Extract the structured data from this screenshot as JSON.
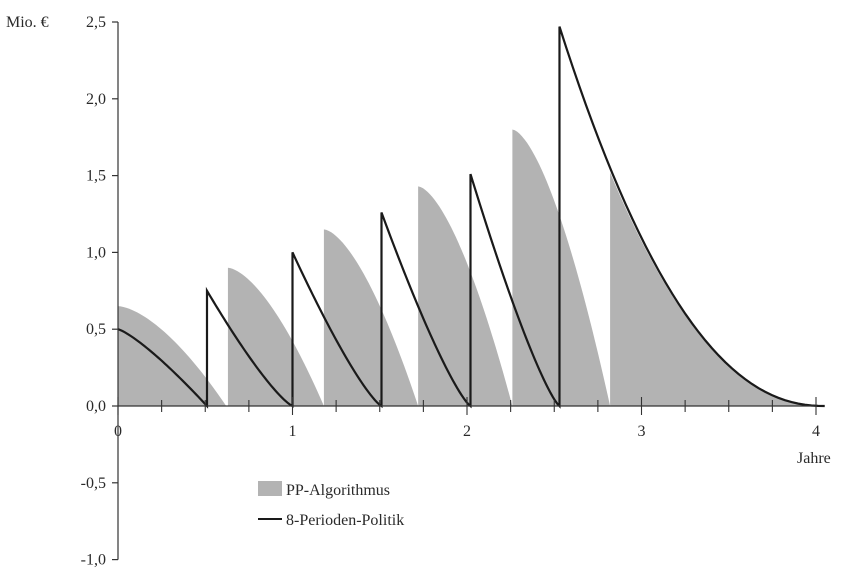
{
  "chart_data": {
    "type": "area",
    "ylabel": "Mio. €",
    "xlabel": "Jahre",
    "xlim": [
      0,
      4.05
    ],
    "ylim": [
      -1.0,
      2.5
    ],
    "x_ticks": [
      0,
      1,
      2,
      3,
      4
    ],
    "x_tick_labels": [
      "0",
      "1",
      "2",
      "3",
      "4"
    ],
    "x_minor_step": 0.25,
    "y_ticks": [
      2.5,
      2.0,
      1.5,
      1.0,
      0.5,
      0.0,
      -0.5,
      -1.0
    ],
    "y_tick_labels": [
      "2,5",
      "2,0",
      "1,5",
      "1,0",
      "0,5",
      "0,0",
      "-0,5",
      "-1,0"
    ],
    "grid": false,
    "legend_position": "bottom-left",
    "series": [
      {
        "name": "PP-Algorithmus",
        "kind": "filled-area",
        "color": "#b3b3b3",
        "segments": [
          {
            "x_start": 0.0,
            "x_end": 0.62,
            "peak": 0.65,
            "curve": "concave"
          },
          {
            "x_start": 0.63,
            "x_end": 1.18,
            "peak": 0.9,
            "curve": "concave"
          },
          {
            "x_start": 1.18,
            "x_end": 1.72,
            "peak": 1.15,
            "curve": "concave"
          },
          {
            "x_start": 1.72,
            "x_end": 2.26,
            "peak": 1.43,
            "curve": "concave"
          },
          {
            "x_start": 2.26,
            "x_end": 2.82,
            "peak": 1.8,
            "curve": "concave"
          },
          {
            "x_start": 2.82,
            "x_end": 4.05,
            "peak": 1.52,
            "curve": "convex"
          }
        ]
      },
      {
        "name": "8-Perioden-Politik",
        "kind": "line",
        "color": "#1a1a1a",
        "segments": [
          {
            "x_start": 0.0,
            "x_end": 0.51,
            "peak": 0.5,
            "curve": "slightly-concave"
          },
          {
            "x_start": 0.51,
            "x_end": 1.0,
            "peak": 0.75,
            "curve": "slightly-convex"
          },
          {
            "x_start": 1.0,
            "x_end": 1.51,
            "peak": 1.0,
            "curve": "slightly-convex"
          },
          {
            "x_start": 1.51,
            "x_end": 2.02,
            "peak": 1.26,
            "curve": "slightly-convex"
          },
          {
            "x_start": 2.02,
            "x_end": 2.53,
            "peak": 1.51,
            "curve": "slightly-convex"
          },
          {
            "x_start": 2.53,
            "x_end": 4.05,
            "peak": 2.47,
            "curve": "convex"
          }
        ]
      }
    ]
  }
}
